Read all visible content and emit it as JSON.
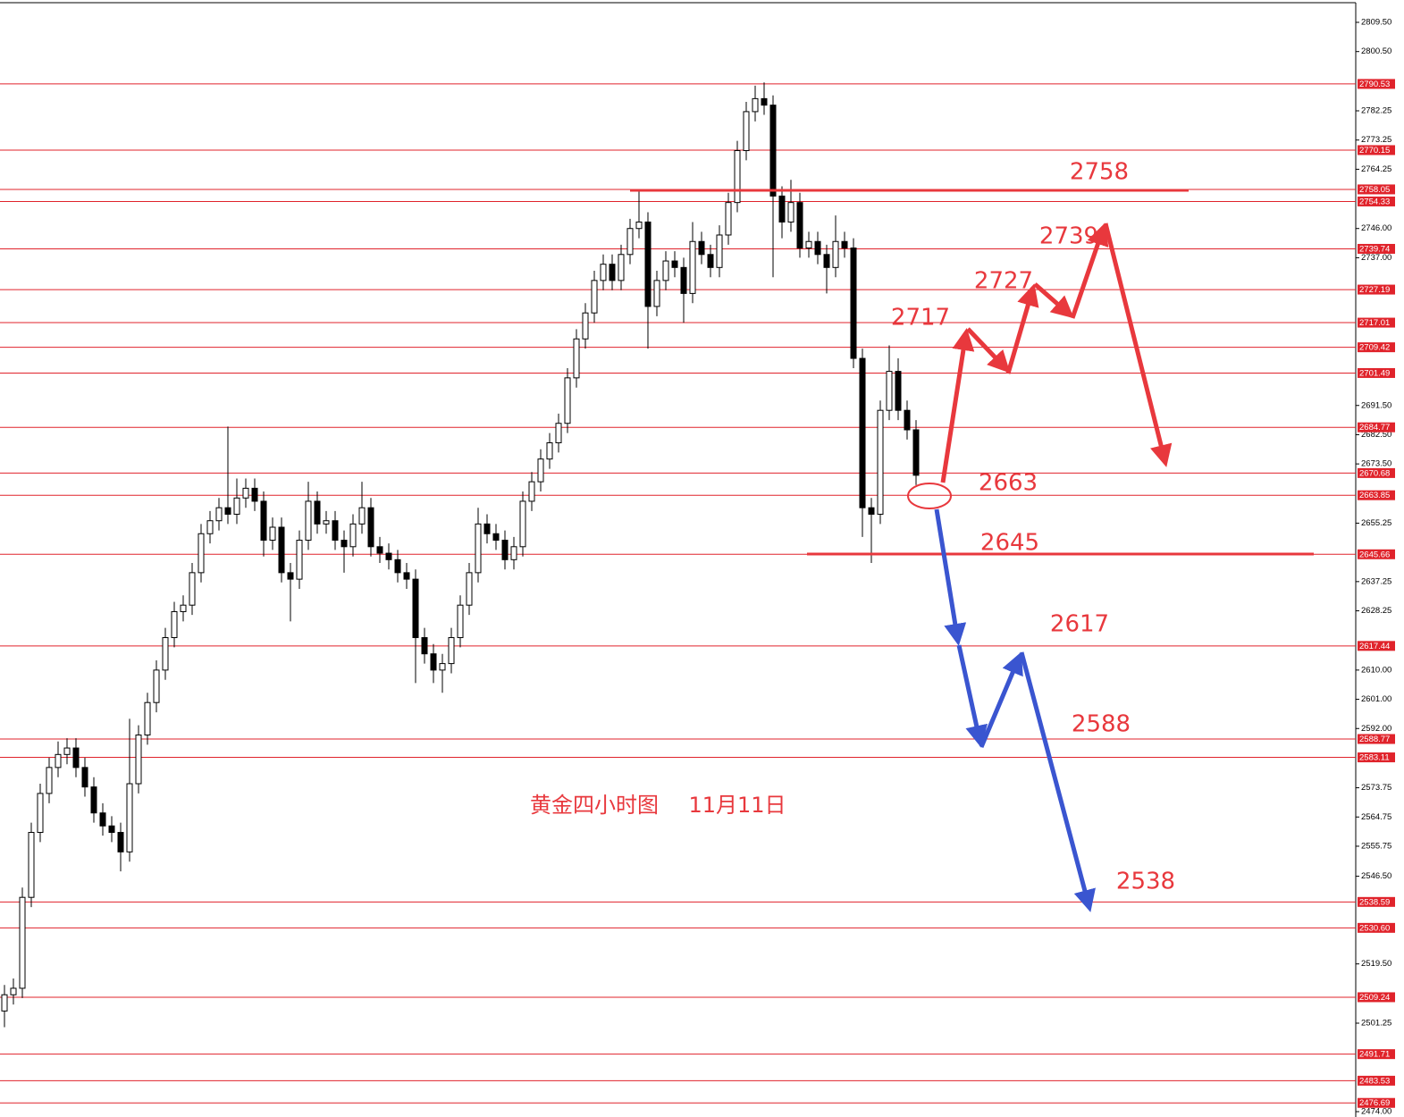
{
  "chart_data": {
    "type": "candlestick",
    "caption": "黄金四小时图",
    "date": "11月11日",
    "annotations": [
      "2758",
      "2739",
      "2727",
      "2717",
      "2663",
      "2645",
      "2617",
      "2588",
      "2538"
    ],
    "ylim": [
      2474,
      2809.5
    ],
    "yticks": [
      {
        "value": 2809.5,
        "label": "2809.50"
      },
      {
        "value": 2800.5,
        "label": "2800.50"
      },
      2782.25,
      2773.25,
      2764.25,
      {
        "value": 2746,
        "label": "2746.00"
      },
      {
        "value": 2737,
        "label": "2737.00"
      },
      {
        "value": 2691.5,
        "label": "2691.50"
      },
      {
        "value": 2682.5,
        "label": "2682.50"
      },
      {
        "value": 2673.5,
        "label": "2673.50"
      },
      2655.25,
      2637.25,
      2628.25,
      {
        "value": 2610,
        "label": "2610.00"
      },
      {
        "value": 2601,
        "label": "2601.00"
      },
      {
        "value": 2592,
        "label": "2592.00"
      },
      2573.75,
      2564.75,
      2555.75,
      {
        "value": 2546.5,
        "label": "2546.50"
      },
      {
        "value": 2519.5,
        "label": "2519.50"
      },
      2501.25,
      {
        "value": 2474,
        "label": "2474.00"
      }
    ],
    "levels": [
      2790.53,
      2770.15,
      2758.05,
      2754.33,
      2739.74,
      2727.19,
      2717.01,
      2709.42,
      2701.49,
      2684.77,
      2670.68,
      2663.85,
      2645.66,
      2617.44,
      2588.77,
      2583.11,
      2538.59,
      {
        "value": 2530.6,
        "label": "2530.60"
      },
      2509.24,
      2491.71,
      2483.53,
      2476.69
    ],
    "level_color": "#e0232b",
    "candles": [
      [
        2505,
        2513,
        2500,
        2510
      ],
      [
        2510,
        2515,
        2507,
        2512
      ],
      [
        2512,
        2543,
        2509,
        2540
      ],
      [
        2540,
        2563,
        2537,
        2560
      ],
      [
        2560,
        2575,
        2557,
        2572
      ],
      [
        2572,
        2583,
        2569,
        2580
      ],
      [
        2580,
        2588,
        2577,
        2584
      ],
      [
        2584,
        2589,
        2581,
        2586
      ],
      [
        2586,
        2589,
        2577,
        2580
      ],
      [
        2580,
        2583,
        2571,
        2574
      ],
      [
        2574,
        2577,
        2563,
        2566
      ],
      [
        2566,
        2569,
        2559,
        2562
      ],
      [
        2562,
        2565,
        2557,
        2560
      ],
      [
        2560,
        2563,
        2548,
        2554
      ],
      [
        2554,
        2595,
        2551,
        2575
      ],
      [
        2575,
        2593,
        2572,
        2590
      ],
      [
        2590,
        2603,
        2587,
        2600
      ],
      [
        2600,
        2613,
        2597,
        2610
      ],
      [
        2610,
        2623,
        2607,
        2620
      ],
      [
        2620,
        2631,
        2617,
        2628
      ],
      [
        2628,
        2633,
        2625,
        2630
      ],
      [
        2630,
        2643,
        2627,
        2640
      ],
      [
        2640,
        2655,
        2637,
        2652
      ],
      [
        2652,
        2659,
        2649,
        2656
      ],
      [
        2656,
        2663,
        2653,
        2660
      ],
      [
        2660,
        2685,
        2655,
        2658
      ],
      [
        2658,
        2669,
        2655,
        2663
      ],
      [
        2663,
        2669,
        2660,
        2666
      ],
      [
        2666,
        2669,
        2659,
        2662
      ],
      [
        2662,
        2665,
        2645,
        2650
      ],
      [
        2650,
        2657,
        2647,
        2654
      ],
      [
        2654,
        2657,
        2637,
        2640
      ],
      [
        2640,
        2643,
        2625,
        2638
      ],
      [
        2638,
        2653,
        2635,
        2650
      ],
      [
        2650,
        2668,
        2647,
        2662
      ],
      [
        2662,
        2665,
        2652,
        2655
      ],
      [
        2655,
        2659,
        2652,
        2656
      ],
      [
        2656,
        2659,
        2647,
        2650
      ],
      [
        2650,
        2653,
        2640,
        2648
      ],
      [
        2648,
        2658,
        2645,
        2655
      ],
      [
        2655,
        2668,
        2652,
        2660
      ],
      [
        2660,
        2663,
        2645,
        2648
      ],
      [
        2648,
        2651,
        2643,
        2646
      ],
      [
        2646,
        2649,
        2641,
        2644
      ],
      [
        2644,
        2647,
        2637,
        2640
      ],
      [
        2640,
        2643,
        2635,
        2638
      ],
      [
        2638,
        2641,
        2606,
        2620
      ],
      [
        2620,
        2623,
        2612,
        2615
      ],
      [
        2615,
        2618,
        2606,
        2610
      ],
      [
        2610,
        2615,
        2603,
        2612
      ],
      [
        2612,
        2623,
        2609,
        2620
      ],
      [
        2620,
        2633,
        2617,
        2630
      ],
      [
        2630,
        2643,
        2627,
        2640
      ],
      [
        2640,
        2660,
        2637,
        2655
      ],
      [
        2655,
        2658,
        2649,
        2652
      ],
      [
        2652,
        2655,
        2647,
        2650
      ],
      [
        2650,
        2653,
        2641,
        2644
      ],
      [
        2644,
        2651,
        2641,
        2648
      ],
      [
        2648,
        2665,
        2645,
        2662
      ],
      [
        2662,
        2671,
        2659,
        2668
      ],
      [
        2668,
        2678,
        2665,
        2675
      ],
      [
        2675,
        2683,
        2672,
        2680
      ],
      [
        2680,
        2689,
        2677,
        2686
      ],
      [
        2686,
        2703,
        2683,
        2700
      ],
      [
        2700,
        2715,
        2697,
        2712
      ],
      [
        2712,
        2723,
        2709,
        2720
      ],
      [
        2720,
        2733,
        2717,
        2730
      ],
      [
        2730,
        2738,
        2727,
        2735
      ],
      [
        2735,
        2738,
        2727,
        2730
      ],
      [
        2730,
        2741,
        2727,
        2738
      ],
      [
        2738,
        2749,
        2735,
        2746
      ],
      [
        2746,
        2758,
        2743,
        2748
      ],
      [
        2748,
        2751,
        2709,
        2722
      ],
      [
        2722,
        2733,
        2719,
        2730
      ],
      [
        2730,
        2739,
        2727,
        2736
      ],
      [
        2736,
        2739,
        2731,
        2734
      ],
      [
        2734,
        2737,
        2717,
        2726
      ],
      [
        2726,
        2748,
        2723,
        2742
      ],
      [
        2742,
        2745,
        2735,
        2738
      ],
      [
        2738,
        2741,
        2731,
        2734
      ],
      [
        2734,
        2747,
        2731,
        2744
      ],
      [
        2744,
        2757,
        2741,
        2754
      ],
      [
        2754,
        2773,
        2751,
        2770
      ],
      [
        2770,
        2785,
        2767,
        2782
      ],
      [
        2782,
        2790,
        2779,
        2786
      ],
      [
        2786,
        2791,
        2781,
        2784
      ],
      [
        2784,
        2787,
        2731,
        2756
      ],
      [
        2756,
        2759,
        2743,
        2748
      ],
      [
        2748,
        2761,
        2745,
        2754
      ],
      [
        2754,
        2757,
        2737,
        2740
      ],
      [
        2740,
        2745,
        2737,
        2742
      ],
      [
        2742,
        2745,
        2735,
        2738
      ],
      [
        2738,
        2741,
        2726,
        2734
      ],
      [
        2734,
        2750,
        2731,
        2742
      ],
      [
        2742,
        2745,
        2737,
        2740
      ],
      [
        2740,
        2743,
        2703,
        2706
      ],
      [
        2706,
        2709,
        2651,
        2660
      ],
      [
        2660,
        2663,
        2643,
        2658
      ],
      [
        2658,
        2693,
        2655,
        2690
      ],
      [
        2690,
        2710,
        2687,
        2702
      ],
      [
        2702,
        2706,
        2687,
        2690
      ],
      [
        2690,
        2693,
        2681,
        2684
      ],
      [
        2684,
        2687,
        2667,
        2670
      ]
    ]
  }
}
